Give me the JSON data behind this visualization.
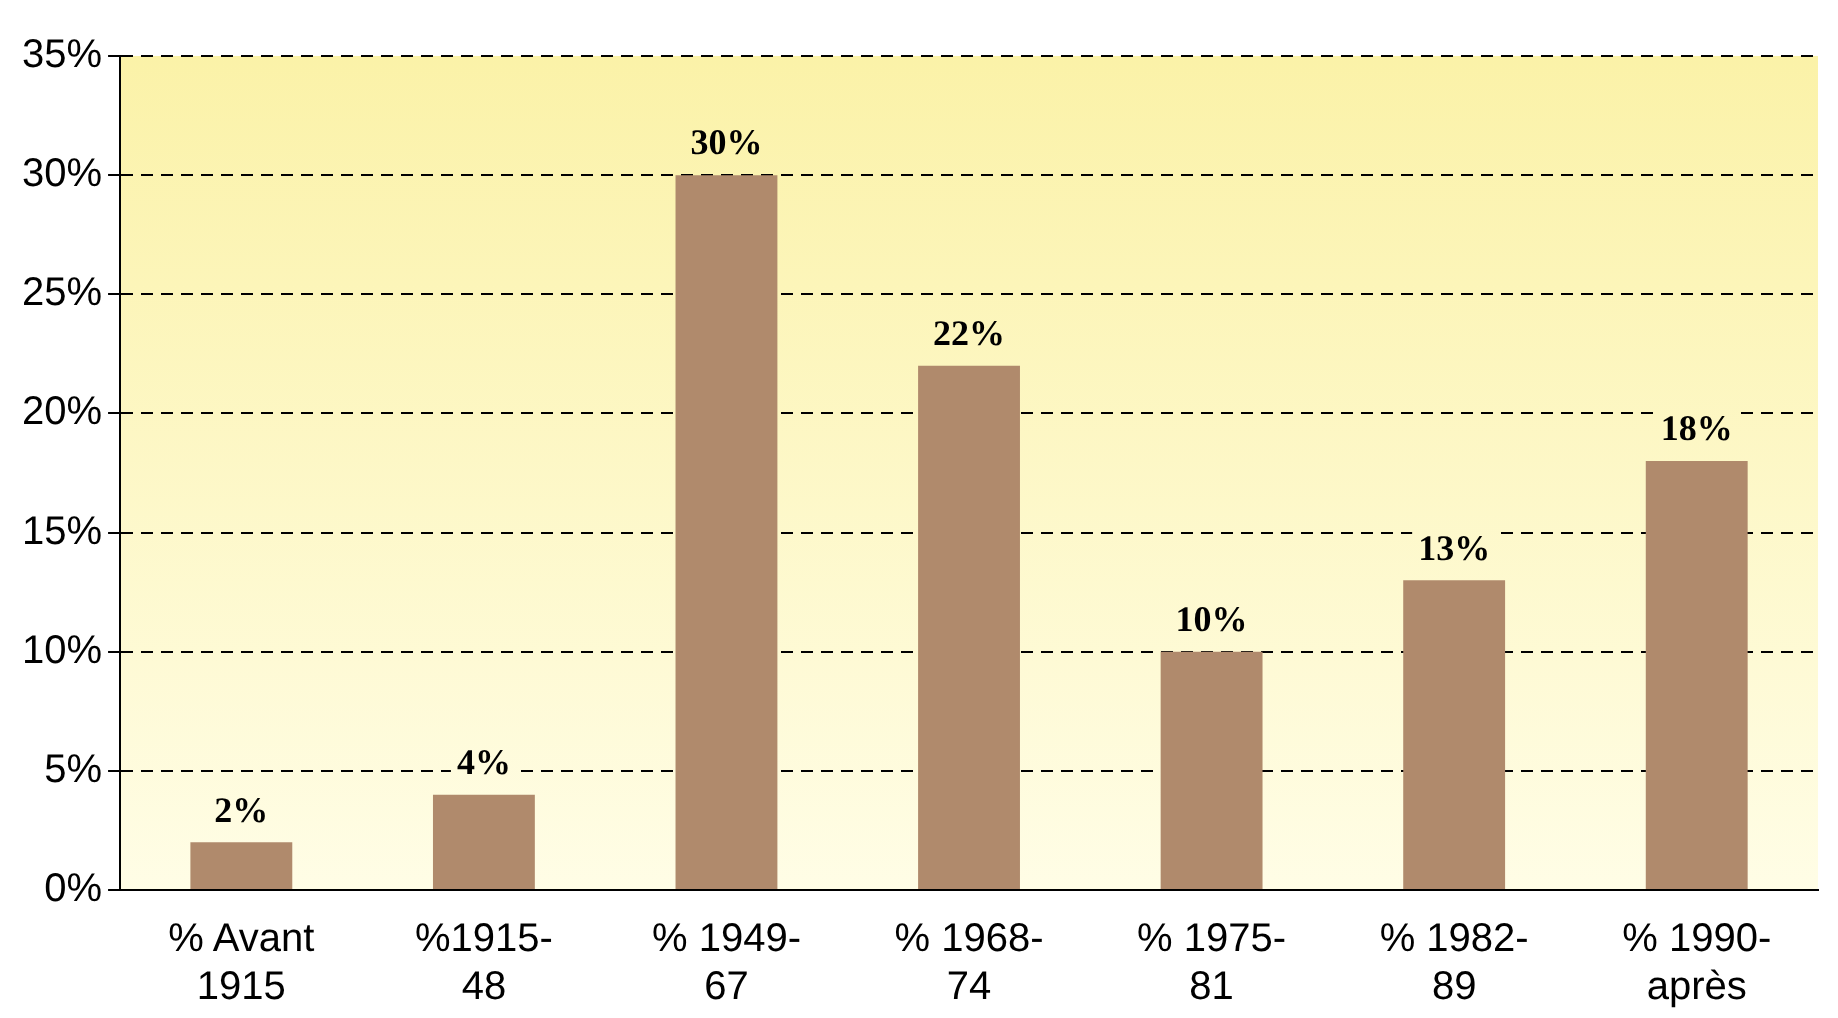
{
  "chart_data": {
    "type": "bar",
    "categories": [
      "% Avant 1915",
      "%1915-48",
      "% 1949-67",
      "% 1968-74",
      "% 1975-81",
      "% 1982-89",
      "% 1990-après"
    ],
    "values": [
      2,
      4,
      30,
      22,
      10,
      13,
      18
    ],
    "color": "#b08a6c",
    "value_labels": [
      "2%",
      "4%",
      "30%",
      "22%",
      "10%",
      "13%",
      "18%"
    ],
    "ylim": [
      0,
      35
    ],
    "yticks": [
      {
        "value": 0,
        "label": "0%"
      },
      {
        "value": 5,
        "label": "5%"
      },
      {
        "value": 10,
        "label": "10%"
      },
      {
        "value": 15,
        "label": "15%"
      },
      {
        "value": 20,
        "label": "20%"
      },
      {
        "value": 25,
        "label": "25%"
      },
      {
        "value": 30,
        "label": "30%"
      },
      {
        "value": 35,
        "label": "35%"
      }
    ],
    "grid": "y",
    "legend": false
  }
}
